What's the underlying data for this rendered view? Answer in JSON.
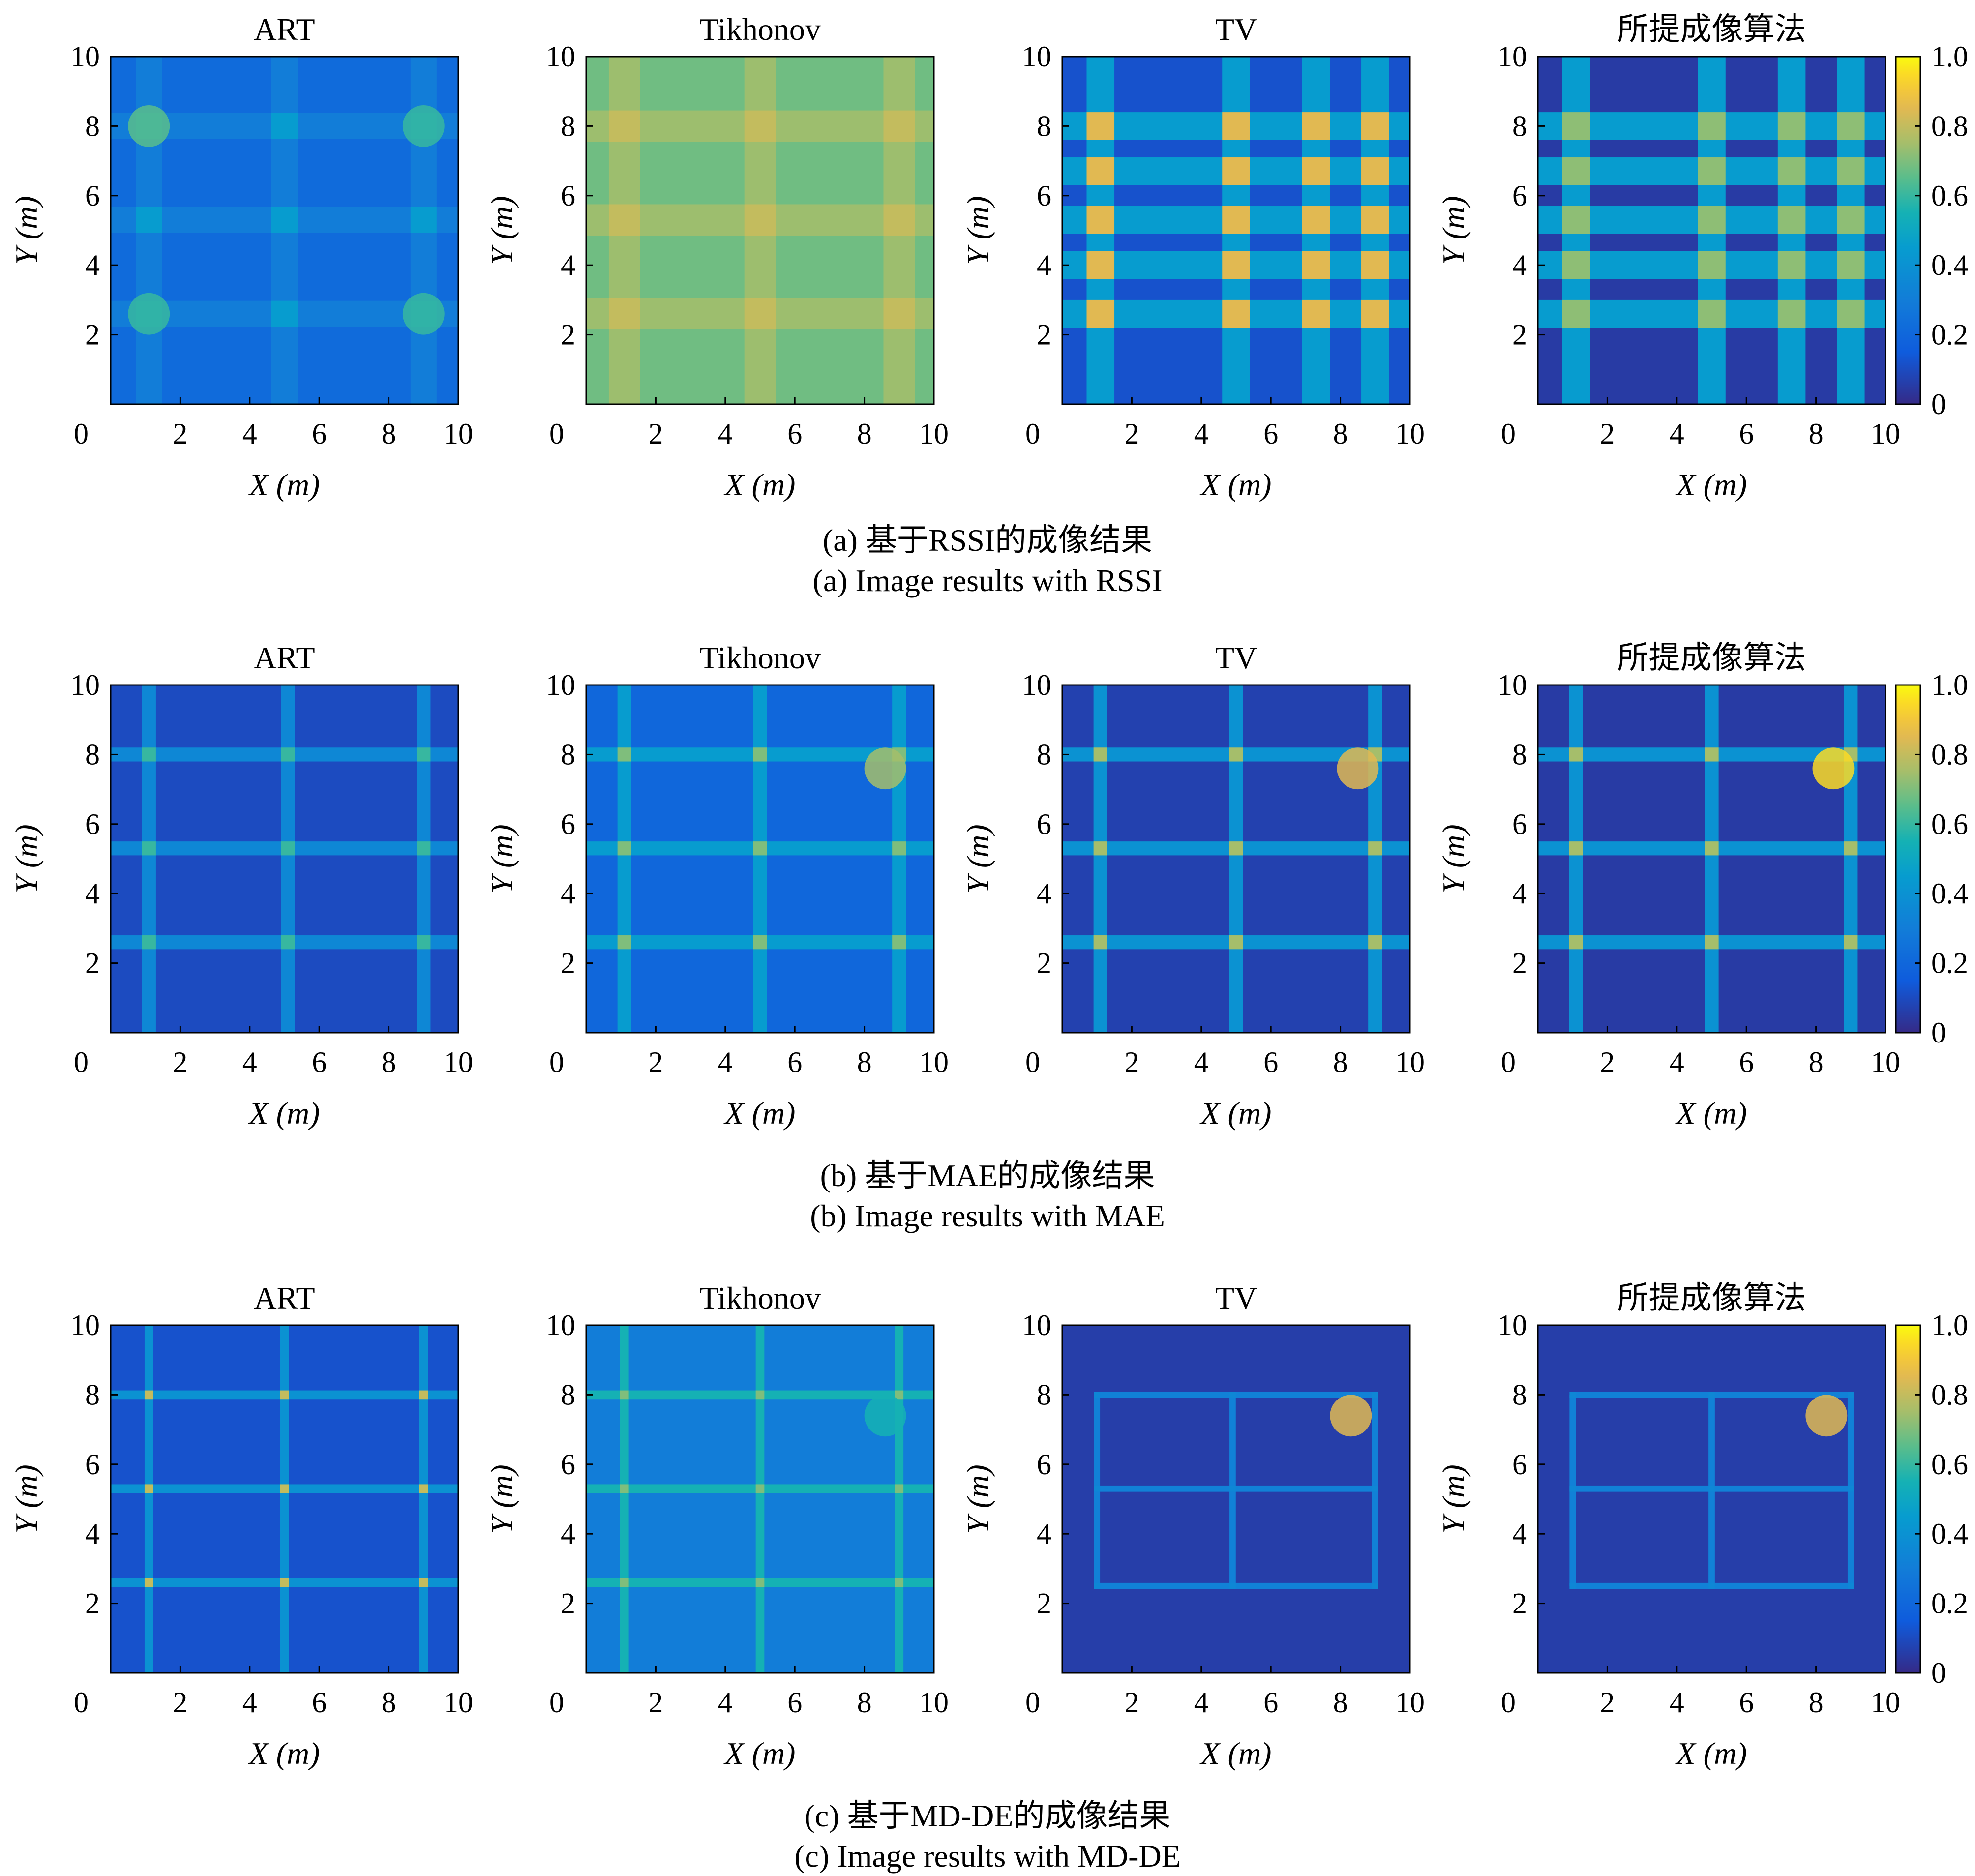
{
  "figure": {
    "rows": [
      {
        "caption_cn": "(a) 基于RSSI的成像结果",
        "caption_en": "(a) Image results with RSSI"
      },
      {
        "caption_cn": "(b) 基于MAE的成像结果",
        "caption_en": "(b) Image results with MAE"
      },
      {
        "caption_cn": "(c) 基于MD-DE的成像结果",
        "caption_en": "(c) Image results with MD-DE"
      }
    ],
    "colormap": "parula"
  },
  "chart_data": [
    {
      "type": "heatmap",
      "row": "RSSI",
      "title": "ART",
      "xlabel": "X (m)",
      "ylabel": "Y (m)",
      "xlim": [
        0,
        10
      ],
      "ylim": [
        0,
        10
      ],
      "xticks": [
        "0",
        "2",
        "4",
        "6",
        "8",
        "10"
      ],
      "yticks": [
        "2",
        "4",
        "6",
        "8",
        "10"
      ],
      "background": 0.22,
      "x_lines": [
        1.1,
        5.0,
        9.0
      ],
      "y_lines": [
        2.6,
        5.3,
        8.0
      ],
      "line_width": 0.75,
      "line_value": 0.3,
      "intersection_value": 0.45,
      "corner_hotspots": [
        [
          1.1,
          8.0,
          0.65
        ],
        [
          9.0,
          8.0,
          0.6
        ],
        [
          1.1,
          2.6,
          0.6
        ],
        [
          9.0,
          2.6,
          0.6
        ]
      ]
    },
    {
      "type": "heatmap",
      "row": "RSSI",
      "title": "Tikhonov",
      "xlabel": "X (m)",
      "ylabel": "Y (m)",
      "xlim": [
        0,
        10
      ],
      "ylim": [
        0,
        10
      ],
      "xticks": [
        "0",
        "2",
        "4",
        "6",
        "8",
        "10"
      ],
      "yticks": [
        "2",
        "4",
        "6",
        "8",
        "10"
      ],
      "background": 0.68,
      "x_lines": [
        1.1,
        5.0,
        9.0
      ],
      "y_lines": [
        2.6,
        5.3,
        8.0
      ],
      "line_width": 0.9,
      "line_value": 0.74,
      "intersection_value": 0.8,
      "corner_hotspots": []
    },
    {
      "type": "heatmap",
      "row": "RSSI",
      "title": "TV",
      "xlabel": "X (m)",
      "ylabel": "Y (m)",
      "xlim": [
        0,
        10
      ],
      "ylim": [
        0,
        10
      ],
      "xticks": [
        "0",
        "2",
        "4",
        "6",
        "8",
        "10"
      ],
      "yticks": [
        "2",
        "4",
        "6",
        "8",
        "10"
      ],
      "background": 0.12,
      "x_lines": [
        1.1,
        5.0,
        7.3,
        9.0
      ],
      "y_lines": [
        2.6,
        4.0,
        5.3,
        6.7,
        8.0
      ],
      "line_width": 0.8,
      "line_value": 0.45,
      "intersection_value": 0.85,
      "corner_hotspots": []
    },
    {
      "type": "heatmap",
      "row": "RSSI",
      "title": "所提成像算法",
      "xlabel": "X (m)",
      "ylabel": "Y (m)",
      "xlim": [
        0,
        10
      ],
      "ylim": [
        0,
        10
      ],
      "xticks": [
        "0",
        "2",
        "4",
        "6",
        "8",
        "10"
      ],
      "yticks": [
        "2",
        "4",
        "6",
        "8",
        "10"
      ],
      "background": 0.05,
      "x_lines": [
        1.1,
        5.0,
        7.3,
        9.0
      ],
      "y_lines": [
        2.6,
        4.0,
        5.3,
        6.7,
        8.0
      ],
      "line_width": 0.8,
      "line_value": 0.45,
      "intersection_value": 0.72,
      "corner_hotspots": [],
      "colorbar": {
        "range": [
          0,
          1
        ],
        "ticks": [
          "0",
          "0.2",
          "0.4",
          "0.6",
          "0.8",
          "1.0"
        ]
      }
    },
    {
      "type": "heatmap",
      "row": "MAE",
      "title": "ART",
      "xlabel": "X (m)",
      "ylabel": "Y (m)",
      "xlim": [
        0,
        10
      ],
      "ylim": [
        0,
        10
      ],
      "xticks": [
        "0",
        "2",
        "4",
        "6",
        "8",
        "10"
      ],
      "yticks": [
        "2",
        "4",
        "6",
        "8",
        "10"
      ],
      "background": 0.1,
      "x_lines": [
        1.1,
        5.1,
        9.0
      ],
      "y_lines": [
        2.6,
        5.3,
        8.0
      ],
      "line_width": 0.4,
      "line_value": 0.35,
      "intersection_value": 0.6,
      "corner_hotspots": []
    },
    {
      "type": "heatmap",
      "row": "MAE",
      "title": "Tikhonov",
      "xlabel": "X (m)",
      "ylabel": "Y (m)",
      "xlim": [
        0,
        10
      ],
      "ylim": [
        0,
        10
      ],
      "xticks": [
        "0",
        "2",
        "4",
        "6",
        "8",
        "10"
      ],
      "yticks": [
        "2",
        "4",
        "6",
        "8",
        "10"
      ],
      "background": 0.2,
      "x_lines": [
        1.1,
        5.0,
        9.0
      ],
      "y_lines": [
        2.6,
        5.3,
        8.0
      ],
      "line_width": 0.4,
      "line_value": 0.45,
      "intersection_value": 0.7,
      "corner_hotspots": [
        [
          8.6,
          7.6,
          0.75
        ]
      ]
    },
    {
      "type": "heatmap",
      "row": "MAE",
      "title": "TV",
      "xlabel": "X (m)",
      "ylabel": "Y (m)",
      "xlim": [
        0,
        10
      ],
      "ylim": [
        0,
        10
      ],
      "xticks": [
        "0",
        "2",
        "4",
        "6",
        "8",
        "10"
      ],
      "yticks": [
        "2",
        "4",
        "6",
        "8",
        "10"
      ],
      "background": 0.07,
      "x_lines": [
        1.1,
        5.0,
        9.0
      ],
      "y_lines": [
        2.6,
        5.3,
        8.0
      ],
      "line_width": 0.4,
      "line_value": 0.4,
      "intersection_value": 0.75,
      "corner_hotspots": [
        [
          8.5,
          7.6,
          0.85
        ]
      ]
    },
    {
      "type": "heatmap",
      "row": "MAE",
      "title": "所提成像算法",
      "xlabel": "X (m)",
      "ylabel": "Y (m)",
      "xlim": [
        0,
        10
      ],
      "ylim": [
        0,
        10
      ],
      "xticks": [
        "0",
        "2",
        "4",
        "6",
        "8",
        "10"
      ],
      "yticks": [
        "2",
        "4",
        "6",
        "8",
        "10"
      ],
      "background": 0.05,
      "x_lines": [
        1.1,
        5.0,
        9.0
      ],
      "y_lines": [
        2.6,
        5.3,
        8.0
      ],
      "line_width": 0.4,
      "line_value": 0.4,
      "intersection_value": 0.75,
      "corner_hotspots": [
        [
          8.5,
          7.6,
          0.95
        ]
      ],
      "colorbar": {
        "range": [
          0,
          1
        ],
        "ticks": [
          "0",
          "0.2",
          "0.4",
          "0.6",
          "0.8",
          "1.0"
        ]
      }
    },
    {
      "type": "heatmap",
      "row": "MD-DE",
      "title": "ART",
      "xlabel": "X (m)",
      "ylabel": "Y (m)",
      "xlim": [
        0,
        10
      ],
      "ylim": [
        0,
        10
      ],
      "xticks": [
        "0",
        "2",
        "4",
        "6",
        "8",
        "10"
      ],
      "yticks": [
        "2",
        "4",
        "6",
        "8",
        "10"
      ],
      "background": 0.12,
      "x_lines": [
        1.1,
        5.0,
        9.0
      ],
      "y_lines": [
        2.6,
        5.3,
        8.0
      ],
      "line_width": 0.25,
      "line_value": 0.4,
      "intersection_value": 0.8,
      "corner_hotspots": []
    },
    {
      "type": "heatmap",
      "row": "MD-DE",
      "title": "Tikhonov",
      "xlabel": "X (m)",
      "ylabel": "Y (m)",
      "xlim": [
        0,
        10
      ],
      "ylim": [
        0,
        10
      ],
      "xticks": [
        "0",
        "2",
        "4",
        "6",
        "8",
        "10"
      ],
      "yticks": [
        "2",
        "4",
        "6",
        "8",
        "10"
      ],
      "background": 0.3,
      "x_lines": [
        1.1,
        5.0,
        9.0
      ],
      "y_lines": [
        2.6,
        5.3,
        8.0
      ],
      "line_width": 0.25,
      "line_value": 0.55,
      "intersection_value": 0.7,
      "corner_hotspots": [
        [
          8.6,
          7.4,
          0.55
        ]
      ]
    },
    {
      "type": "heatmap",
      "row": "MD-DE",
      "title": "TV",
      "xlabel": "X (m)",
      "ylabel": "Y (m)",
      "xlim": [
        0,
        10
      ],
      "ylim": [
        0,
        10
      ],
      "xticks": [
        "0",
        "2",
        "4",
        "6",
        "8",
        "10"
      ],
      "yticks": [
        "2",
        "4",
        "6",
        "8",
        "10"
      ],
      "background": 0.06,
      "x_lines": [
        1.0,
        4.9,
        9.0
      ],
      "y_lines": [
        2.5,
        5.3,
        8.0
      ],
      "line_width": 0.18,
      "line_value": 0.32,
      "intersection_value": 0.35,
      "corner_hotspots": [
        [
          8.3,
          7.4,
          0.85
        ]
      ],
      "frame": [
        1.0,
        2.5,
        9.0,
        8.0
      ]
    },
    {
      "type": "heatmap",
      "row": "MD-DE",
      "title": "所提成像算法",
      "xlabel": "X (m)",
      "ylabel": "Y (m)",
      "xlim": [
        0,
        10
      ],
      "ylim": [
        0,
        10
      ],
      "xticks": [
        "0",
        "2",
        "4",
        "6",
        "8",
        "10"
      ],
      "yticks": [
        "2",
        "4",
        "6",
        "8",
        "10"
      ],
      "background": 0.06,
      "x_lines": [
        1.0,
        5.0,
        9.0
      ],
      "y_lines": [
        2.5,
        5.3,
        8.0
      ],
      "line_width": 0.18,
      "line_value": 0.32,
      "intersection_value": 0.35,
      "corner_hotspots": [
        [
          8.3,
          7.4,
          0.85
        ]
      ],
      "frame": [
        1.0,
        2.5,
        9.0,
        8.0
      ],
      "colorbar": {
        "range": [
          0,
          1
        ],
        "ticks": [
          "0",
          "0.2",
          "0.4",
          "0.6",
          "0.8",
          "1.0"
        ]
      }
    }
  ]
}
